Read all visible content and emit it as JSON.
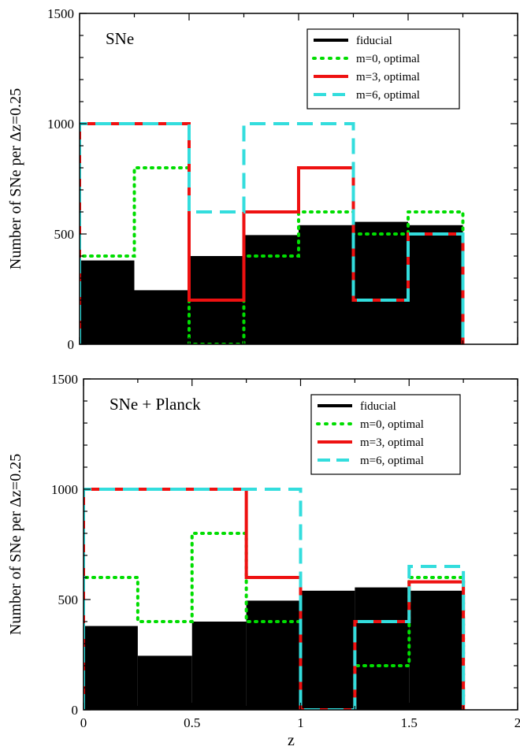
{
  "figure": {
    "xlabel": "z",
    "xticks": [
      0,
      0.5,
      1,
      1.5,
      2
    ],
    "xtick_labels": [
      "0",
      "0.5",
      "1",
      "1.5",
      "2"
    ]
  },
  "chart_data": [
    {
      "type": "histogram",
      "panel_label": "SNe",
      "ylabel": "Number of SNe per Δz=0.25",
      "xlim": [
        0,
        2
      ],
      "ylim": [
        0,
        1500
      ],
      "yticks": [
        0,
        500,
        1000,
        1500
      ],
      "ytick_labels": [
        "0",
        "500",
        "1000",
        "1500"
      ],
      "legend_position": "top-right",
      "bin_edges": [
        0,
        0.25,
        0.5,
        0.75,
        1.0,
        1.25,
        1.5,
        1.75
      ],
      "series": [
        {
          "name": "fiducial",
          "style": "filled",
          "color": "#000000",
          "values": [
            380,
            245,
            400,
            495,
            540,
            555,
            540
          ]
        },
        {
          "name": "m=0, optimal",
          "style": "dotted",
          "color": "#00dd00",
          "values": [
            400,
            800,
            0,
            400,
            600,
            500,
            600
          ]
        },
        {
          "name": "m=3, optimal",
          "style": "solid",
          "color": "#ee1111",
          "values": [
            1000,
            1000,
            200,
            600,
            800,
            200,
            500
          ]
        },
        {
          "name": "m=6, optimal",
          "style": "dashed",
          "color": "#33dddd",
          "values": [
            1000,
            1000,
            600,
            1000,
            1000,
            200,
            500
          ]
        }
      ]
    },
    {
      "type": "histogram",
      "panel_label": "SNe + Planck",
      "ylabel": "Number of SNe per Δz=0.25",
      "xlim": [
        0,
        2
      ],
      "ylim": [
        0,
        1500
      ],
      "yticks": [
        0,
        500,
        1000,
        1500
      ],
      "ytick_labels": [
        "0",
        "500",
        "1000",
        "1500"
      ],
      "legend_position": "top-right",
      "bin_edges": [
        0,
        0.25,
        0.5,
        0.75,
        1.0,
        1.25,
        1.5,
        1.75
      ],
      "series": [
        {
          "name": "fiducial",
          "style": "filled",
          "color": "#000000",
          "values": [
            380,
            245,
            400,
            495,
            540,
            555,
            540
          ]
        },
        {
          "name": "m=0, optimal",
          "style": "dotted",
          "color": "#00dd00",
          "values": [
            600,
            400,
            800,
            400,
            0,
            200,
            600
          ]
        },
        {
          "name": "m=3, optimal",
          "style": "solid",
          "color": "#ee1111",
          "values": [
            1000,
            1000,
            1000,
            600,
            0,
            400,
            580
          ]
        },
        {
          "name": "m=6, optimal",
          "style": "dashed",
          "color": "#33dddd",
          "values": [
            1000,
            1000,
            1000,
            1000,
            0,
            400,
            650
          ]
        }
      ]
    }
  ]
}
